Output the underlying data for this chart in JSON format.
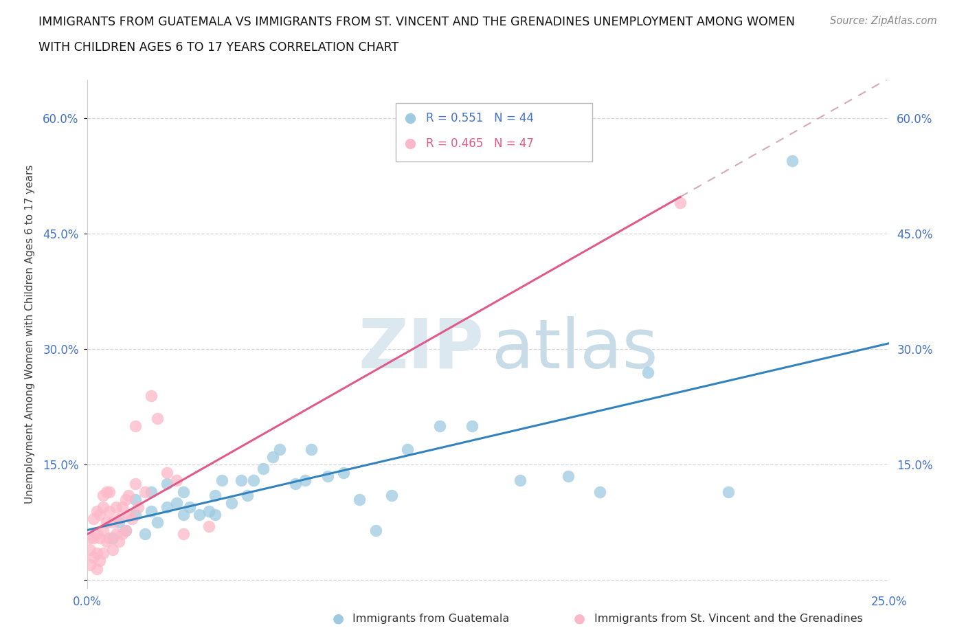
{
  "title_line1": "IMMIGRANTS FROM GUATEMALA VS IMMIGRANTS FROM ST. VINCENT AND THE GRENADINES UNEMPLOYMENT AMONG WOMEN",
  "title_line2": "WITH CHILDREN AGES 6 TO 17 YEARS CORRELATION CHART",
  "source_text": "Source: ZipAtlas.com",
  "ylabel": "Unemployment Among Women with Children Ages 6 to 17 years",
  "xlabel_blue": "Immigrants from Guatemala",
  "xlabel_pink": "Immigrants from St. Vincent and the Grenadines",
  "r_blue": 0.551,
  "n_blue": 44,
  "r_pink": 0.465,
  "n_pink": 47,
  "xlim": [
    0.0,
    0.25
  ],
  "ylim": [
    -0.01,
    0.65
  ],
  "yticks": [
    0.0,
    0.15,
    0.3,
    0.45,
    0.6
  ],
  "ytick_labels": [
    "",
    "15.0%",
    "30.0%",
    "45.0%",
    "60.0%"
  ],
  "xticks": [
    0.0,
    0.05,
    0.1,
    0.15,
    0.2,
    0.25
  ],
  "xtick_labels": [
    "0.0%",
    "",
    "",
    "",
    "",
    "25.0%"
  ],
  "blue_color": "#9ecae1",
  "pink_color": "#fcb8c8",
  "trend_blue_color": "#3182bd",
  "trend_pink_color": "#e05a8a",
  "trend_pink_dashed_color": "#d4aab8",
  "blue_scatter_x": [
    0.008,
    0.01,
    0.012,
    0.015,
    0.015,
    0.018,
    0.02,
    0.02,
    0.022,
    0.025,
    0.025,
    0.028,
    0.03,
    0.03,
    0.032,
    0.035,
    0.038,
    0.04,
    0.04,
    0.042,
    0.045,
    0.048,
    0.05,
    0.052,
    0.055,
    0.058,
    0.06,
    0.065,
    0.068,
    0.07,
    0.075,
    0.08,
    0.085,
    0.09,
    0.095,
    0.1,
    0.11,
    0.12,
    0.135,
    0.15,
    0.16,
    0.175,
    0.2,
    0.22
  ],
  "blue_scatter_y": [
    0.055,
    0.075,
    0.065,
    0.085,
    0.105,
    0.06,
    0.09,
    0.115,
    0.075,
    0.095,
    0.125,
    0.1,
    0.085,
    0.115,
    0.095,
    0.085,
    0.09,
    0.085,
    0.11,
    0.13,
    0.1,
    0.13,
    0.11,
    0.13,
    0.145,
    0.16,
    0.17,
    0.125,
    0.13,
    0.17,
    0.135,
    0.14,
    0.105,
    0.065,
    0.11,
    0.17,
    0.2,
    0.2,
    0.13,
    0.135,
    0.115,
    0.27,
    0.115,
    0.545
  ],
  "pink_scatter_x": [
    0.001,
    0.001,
    0.001,
    0.002,
    0.002,
    0.002,
    0.003,
    0.003,
    0.003,
    0.003,
    0.004,
    0.004,
    0.004,
    0.005,
    0.005,
    0.005,
    0.005,
    0.006,
    0.006,
    0.006,
    0.007,
    0.007,
    0.007,
    0.008,
    0.008,
    0.009,
    0.009,
    0.01,
    0.01,
    0.011,
    0.011,
    0.012,
    0.012,
    0.013,
    0.013,
    0.014,
    0.015,
    0.015,
    0.016,
    0.018,
    0.02,
    0.022,
    0.025,
    0.028,
    0.03,
    0.038,
    0.185
  ],
  "pink_scatter_y": [
    0.02,
    0.04,
    0.055,
    0.03,
    0.055,
    0.08,
    0.015,
    0.035,
    0.06,
    0.09,
    0.025,
    0.055,
    0.085,
    0.035,
    0.065,
    0.095,
    0.11,
    0.05,
    0.075,
    0.115,
    0.055,
    0.09,
    0.115,
    0.04,
    0.075,
    0.06,
    0.095,
    0.05,
    0.08,
    0.06,
    0.095,
    0.065,
    0.105,
    0.085,
    0.11,
    0.08,
    0.125,
    0.2,
    0.095,
    0.115,
    0.24,
    0.21,
    0.14,
    0.13,
    0.06,
    0.07,
    0.49
  ]
}
